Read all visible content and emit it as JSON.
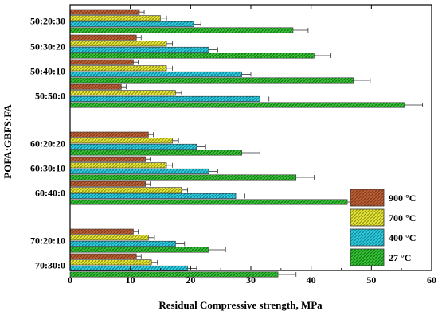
{
  "chart_data": {
    "type": "bar",
    "orientation": "horizontal",
    "title": "",
    "xlabel": "Residual Compressive strength, MPa",
    "ylabel": "POFA:GBFS:FA",
    "xlim": [
      0,
      60
    ],
    "x_ticks": [
      "0",
      "10",
      "20",
      "30",
      "40",
      "50",
      "60"
    ],
    "grid": false,
    "legend_position": "bottom-right",
    "groups": [
      {
        "name": "50:20:30",
        "values": [
          11.5,
          15.0,
          20.5,
          37.0
        ],
        "errors": [
          0.8,
          1.0,
          1.2,
          2.5
        ]
      },
      {
        "name": "50:30:20",
        "values": [
          11.0,
          16.0,
          23.0,
          40.5
        ],
        "errors": [
          0.8,
          1.0,
          1.5,
          2.8
        ]
      },
      {
        "name": "50:40:10",
        "values": [
          10.5,
          16.0,
          28.5,
          47.0
        ],
        "errors": [
          0.8,
          1.0,
          1.5,
          2.8
        ]
      },
      {
        "name": "50:50:0",
        "values": [
          8.5,
          17.5,
          31.5,
          55.5
        ],
        "errors": [
          0.8,
          1.0,
          1.5,
          3.0
        ]
      },
      {
        "name": "60:20:20",
        "values": [
          13.0,
          17.0,
          21.0,
          28.5
        ],
        "errors": [
          0.8,
          1.0,
          1.5,
          3.0
        ]
      },
      {
        "name": "60:30:10",
        "values": [
          12.5,
          16.0,
          23.0,
          37.5
        ],
        "errors": [
          0.8,
          1.0,
          1.5,
          3.0
        ]
      },
      {
        "name": "60:40:0",
        "values": [
          12.5,
          18.5,
          27.5,
          46.0
        ],
        "errors": [
          0.8,
          1.0,
          1.5,
          2.8
        ]
      },
      {
        "name": "70:20:10",
        "values": [
          10.5,
          13.0,
          17.5,
          23.0
        ],
        "errors": [
          0.8,
          1.0,
          1.5,
          2.8
        ]
      },
      {
        "name": "70:30:0",
        "values": [
          11.0,
          13.5,
          19.5,
          34.5
        ],
        "errors": [
          0.8,
          1.0,
          1.5,
          3.0
        ]
      }
    ],
    "series": [
      {
        "name": "900 °C",
        "color": "#c0643a",
        "pattern_color": "#7a3214"
      },
      {
        "name": "700 °C",
        "color": "#ecec3c",
        "pattern_color": "#8a8a10"
      },
      {
        "name": "400 °C",
        "color": "#33d2e6",
        "pattern_color": "#0a7d8c"
      },
      {
        "name": "27 °C",
        "color": "#3cc83c",
        "pattern_color": "#0d6e0d"
      }
    ]
  }
}
